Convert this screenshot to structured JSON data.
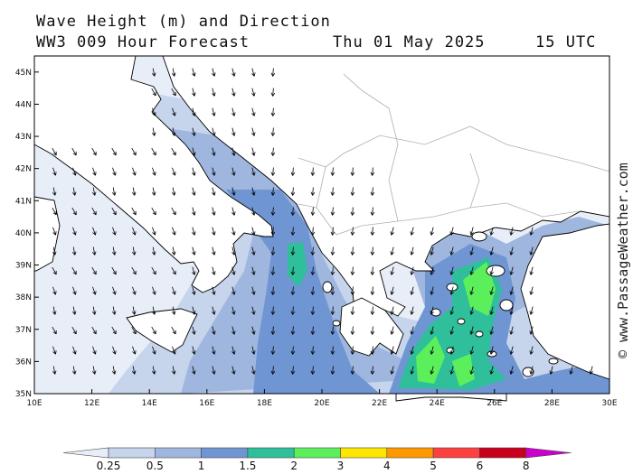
{
  "header": {
    "line1": "Wave Height (m) and Direction",
    "line2": "WW3 009 Hour Forecast",
    "date": "Thu 01 May 2025",
    "time": "15 UTC"
  },
  "watermark": "© www.PassageWeather.com",
  "map": {
    "lon_range": [
      10,
      30
    ],
    "lat_range": [
      35,
      45.5
    ],
    "lon_labels": [
      "10E",
      "12E",
      "14E",
      "16E",
      "18E",
      "20E",
      "22E",
      "24E",
      "26E",
      "28E",
      "30E"
    ],
    "lat_labels": [
      "35N",
      "36N",
      "37N",
      "38N",
      "39N",
      "40N",
      "41N",
      "42N",
      "43N",
      "44N",
      "45N"
    ],
    "land_color": "#ffffff",
    "coast_color": "#000000",
    "border_color": "#b0b0b0"
  },
  "legend": {
    "colors": [
      "#e8eef8",
      "#c6d4ec",
      "#9fb6df",
      "#6f95d3",
      "#2fbf9a",
      "#5cef5c",
      "#ffe600",
      "#ff9900",
      "#ff4040",
      "#c8001e",
      "#cc00cc"
    ],
    "labels": [
      "0.25",
      "0.5",
      "1",
      "1.5",
      "2",
      "3",
      "4",
      "5",
      "6",
      "8"
    ]
  }
}
